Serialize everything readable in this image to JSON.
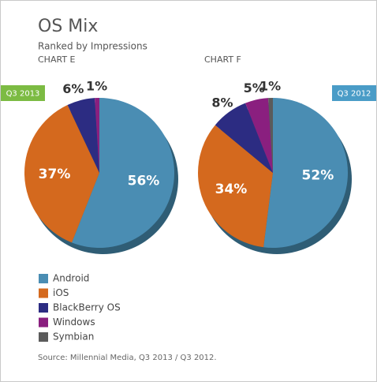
{
  "title": "OS Mix",
  "subtitle": "Ranked by Impressions",
  "source": "Source: Millennial Media, Q3 2013 / Q3 2012.",
  "chart_data": [
    {
      "type": "pie",
      "title": "CHART E",
      "period": "Q3 2013",
      "period_color": "#7cbb43",
      "categories": [
        "Android",
        "iOS",
        "BlackBerry OS",
        "Windows",
        "Symbian"
      ],
      "values": [
        56,
        37,
        6,
        1,
        0
      ],
      "value_labels": [
        "56%",
        "37%",
        "6%",
        "1%",
        null
      ],
      "colors": [
        "#4a8db3",
        "#d4691e",
        "#2c2c82",
        "#8a1f7f",
        "#5b5b5b"
      ]
    },
    {
      "type": "pie",
      "title": "CHART F",
      "period": "Q3 2012",
      "period_color": "#4a9cc7",
      "categories": [
        "Android",
        "iOS",
        "BlackBerry OS",
        "Windows",
        "Symbian"
      ],
      "values": [
        52,
        34,
        8,
        5,
        1
      ],
      "value_labels": [
        "52%",
        "34%",
        "8%",
        "5%",
        "1%"
      ],
      "colors": [
        "#4a8db3",
        "#d4691e",
        "#2c2c82",
        "#8a1f7f",
        "#5b5b5b"
      ]
    }
  ]
}
